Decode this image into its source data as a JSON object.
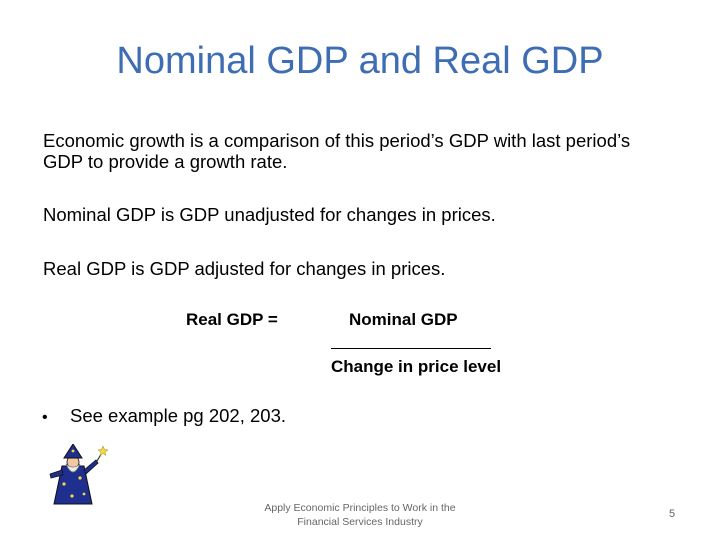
{
  "title": "Nominal GDP and Real GDP",
  "paragraphs": [
    "Economic growth is a comparison of this period’s GDP with last period’s GDP to provide a growth rate.",
    "Nominal GDP is GDP unadjusted for changes in prices.",
    "Real GDP is GDP adjusted for changes in prices."
  ],
  "formula": {
    "lhs": "Real GDP =",
    "numerator": "Nominal GDP",
    "denominator": "Change in price level"
  },
  "bullets": [
    "See example pg 202, 203."
  ],
  "bullet_glyph": "•",
  "footer": {
    "line1": "Apply Economic Principles to Work in the",
    "line2": "Financial Services Industry"
  },
  "page_number": "5",
  "colors": {
    "title": "#3d6db3",
    "footer": "#666666"
  },
  "icons": {
    "clipart": "wizard-icon"
  }
}
